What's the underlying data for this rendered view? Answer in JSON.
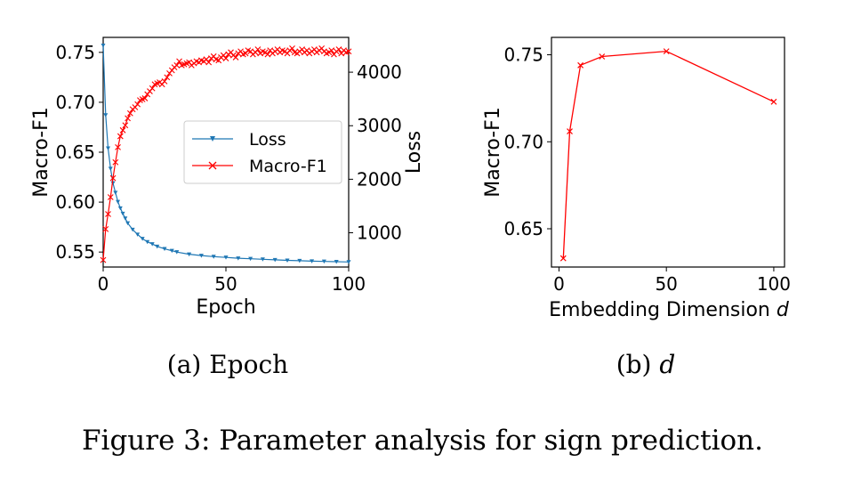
{
  "caption": "Figure 3: Parameter analysis for sign prediction.",
  "chart_data": [
    {
      "type": "line",
      "subcaption": "(a) Epoch",
      "xlabel": "Epoch",
      "ylabel": "Macro-F1",
      "y2label": "Loss",
      "xlim": [
        0,
        100
      ],
      "ylim": [
        0.535,
        0.765
      ],
      "y2lim": [
        360,
        4650
      ],
      "xticks": [
        0,
        50,
        100
      ],
      "yticks": [
        0.55,
        0.6,
        0.65,
        0.7,
        0.75
      ],
      "y2ticks": [
        1000,
        2000,
        3000,
        4000
      ],
      "legend_loc": "center-right",
      "legend": [
        "Loss",
        "Macro-F1"
      ],
      "series": [
        {
          "name": "Loss",
          "axis": "right",
          "color": "#1f77b4",
          "marker": "tri_down",
          "x": [
            0,
            1,
            2,
            3,
            4,
            5,
            6,
            7,
            8,
            9,
            10,
            12,
            14,
            16,
            18,
            20,
            22,
            25,
            28,
            30,
            35,
            40,
            45,
            50,
            55,
            60,
            65,
            70,
            75,
            80,
            85,
            90,
            95,
            100
          ],
          "values": [
            4500,
            3200,
            2580,
            2200,
            1930,
            1750,
            1580,
            1460,
            1360,
            1270,
            1180,
            1060,
            970,
            890,
            830,
            790,
            745,
            700,
            665,
            640,
            600,
            575,
            555,
            540,
            525,
            515,
            505,
            495,
            485,
            478,
            470,
            465,
            460,
            455
          ]
        },
        {
          "name": "Macro-F1",
          "axis": "left",
          "color": "#ff0000",
          "marker": "x",
          "x": [
            0,
            1,
            2,
            3,
            4,
            5,
            6,
            7,
            8,
            9,
            10,
            11,
            12,
            13,
            14,
            15,
            16,
            17,
            18,
            19,
            20,
            21,
            22,
            23,
            24,
            25,
            26,
            27,
            28,
            29,
            30,
            31,
            32,
            33,
            34,
            35,
            36,
            37,
            38,
            39,
            40,
            41,
            42,
            43,
            44,
            45,
            46,
            47,
            48,
            49,
            50,
            51,
            52,
            53,
            54,
            55,
            56,
            57,
            58,
            59,
            60,
            61,
            62,
            63,
            64,
            65,
            66,
            67,
            68,
            69,
            70,
            71,
            72,
            73,
            74,
            75,
            76,
            77,
            78,
            79,
            80,
            81,
            82,
            83,
            84,
            85,
            86,
            87,
            88,
            89,
            90,
            91,
            92,
            93,
            94,
            95,
            96,
            97,
            98,
            99,
            100
          ],
          "values": [
            0.542,
            0.573,
            0.588,
            0.605,
            0.624,
            0.64,
            0.655,
            0.666,
            0.672,
            0.677,
            0.684,
            0.689,
            0.693,
            0.695,
            0.698,
            0.702,
            0.703,
            0.704,
            0.708,
            0.711,
            0.714,
            0.718,
            0.719,
            0.72,
            0.718,
            0.721,
            0.725,
            0.729,
            0.732,
            0.735,
            0.737,
            0.741,
            0.737,
            0.738,
            0.739,
            0.74,
            0.737,
            0.739,
            0.741,
            0.74,
            0.742,
            0.741,
            0.743,
            0.74,
            0.744,
            0.746,
            0.743,
            0.742,
            0.745,
            0.747,
            0.744,
            0.748,
            0.75,
            0.747,
            0.745,
            0.749,
            0.751,
            0.748,
            0.749,
            0.752,
            0.751,
            0.748,
            0.75,
            0.753,
            0.749,
            0.751,
            0.75,
            0.748,
            0.752,
            0.749,
            0.751,
            0.753,
            0.75,
            0.752,
            0.751,
            0.749,
            0.752,
            0.754,
            0.75,
            0.749,
            0.751,
            0.753,
            0.75,
            0.752,
            0.749,
            0.751,
            0.753,
            0.75,
            0.752,
            0.754,
            0.751,
            0.749,
            0.75,
            0.752,
            0.748,
            0.751,
            0.753,
            0.749,
            0.752,
            0.75,
            0.751
          ]
        }
      ]
    },
    {
      "type": "line",
      "subcaption": "(b) d",
      "xlabel": "Embedding Dimension d",
      "ylabel": "Macro-F1",
      "xlim": [
        -3.5,
        105
      ],
      "ylim": [
        0.628,
        0.76
      ],
      "xticks": [
        0,
        50,
        100
      ],
      "yticks": [
        0.65,
        0.7,
        0.75
      ],
      "series": [
        {
          "name": "",
          "color": "#ff0000",
          "marker": "x",
          "x": [
            2,
            5,
            10,
            20,
            50,
            100
          ],
          "values": [
            0.633,
            0.706,
            0.744,
            0.749,
            0.752,
            0.723
          ]
        }
      ]
    }
  ]
}
